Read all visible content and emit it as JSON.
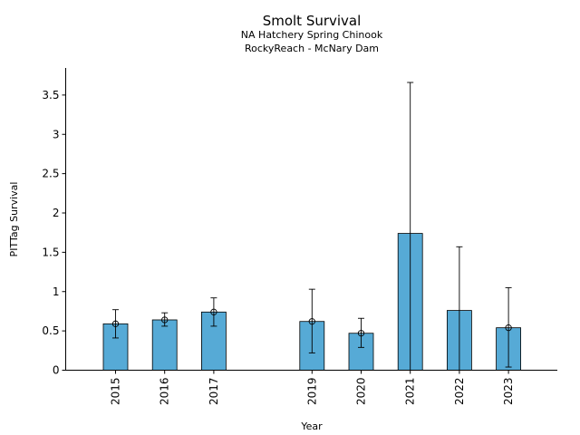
{
  "chart_data": {
    "type": "bar",
    "title": "Smolt Survival",
    "subtitles": [
      "NA Hatchery Spring Chinook",
      "RockyReach - McNary Dam"
    ],
    "xlabel": "Year",
    "ylabel": "PITTag Survival",
    "ylim": [
      0,
      3.85
    ],
    "yticks": [
      0,
      0.5,
      1,
      1.5,
      2,
      2.5,
      3,
      3.5
    ],
    "ytick_labels": [
      "0",
      "0.5",
      "1",
      "1.5",
      "2",
      "2.5",
      "3",
      "3.5"
    ],
    "categories": [
      "2015",
      "2016",
      "2017",
      "2019",
      "2020",
      "2021",
      "2022",
      "2023"
    ],
    "slots": [
      0,
      1,
      2,
      4,
      5,
      6,
      7,
      8
    ],
    "values": [
      0.59,
      0.64,
      0.74,
      0.62,
      0.47,
      1.74,
      0.76,
      0.54
    ],
    "error_lower": [
      0.41,
      0.56,
      0.56,
      0.22,
      0.29,
      0.0,
      0.0,
      0.04
    ],
    "error_upper": [
      0.77,
      0.73,
      0.92,
      1.03,
      0.66,
      3.66,
      1.57,
      1.05
    ],
    "point_markers": [
      true,
      true,
      true,
      true,
      true,
      false,
      false,
      true
    ],
    "bar_color": "#56aad6",
    "edge_color": "#000000",
    "grid": false,
    "legend": "none"
  }
}
